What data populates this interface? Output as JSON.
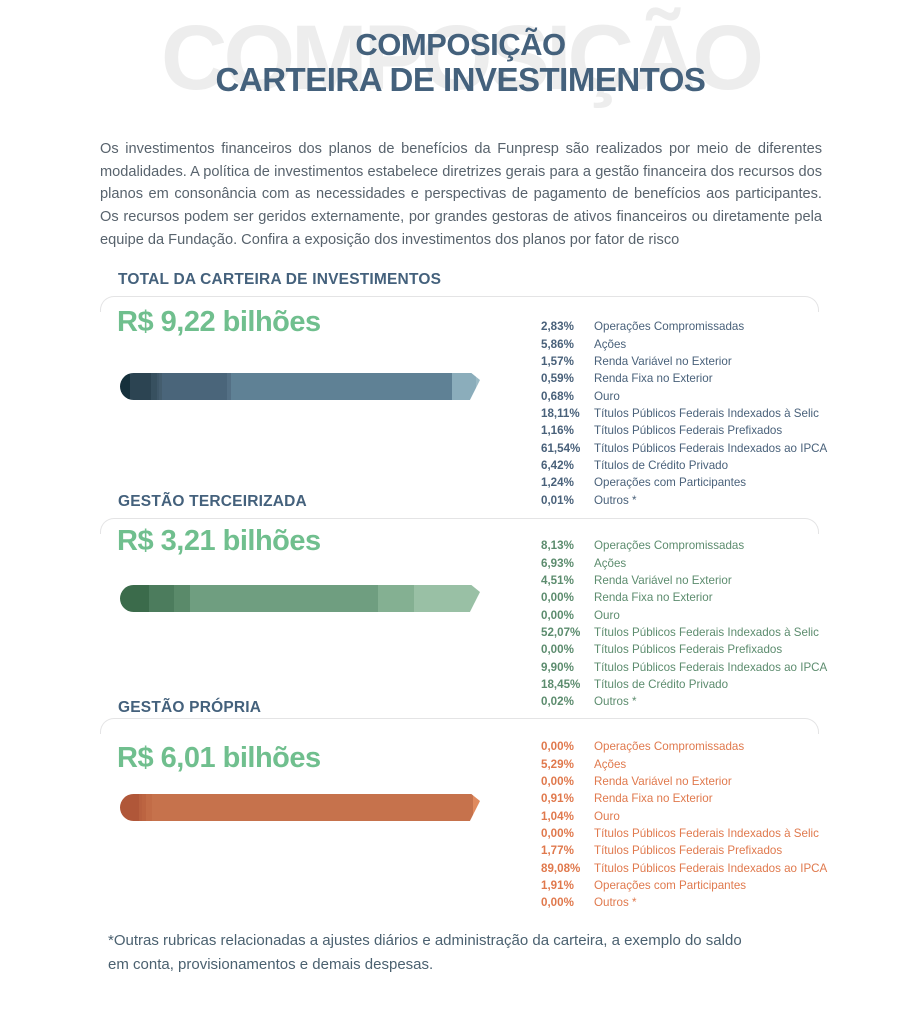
{
  "header": {
    "watermark": "COMPOSIÇÃO",
    "title_line1": "COMPOSIÇÃO",
    "title_line2": "CARTEIRA DE INVESTIMENTOS"
  },
  "intro": "Os investimentos financeiros dos planos de benefícios da Funpresp são realizados por meio de diferentes modalidades. A política de investimentos estabelece diretrizes gerais para a gestão financeira dos recursos dos planos em consonância com as necessidades e perspectivas de pagamento de benefícios aos participantes. Os recursos podem ser geridos externamente, por grandes gestoras de ativos financeiros ou diretamente pela equipe da Fundação. Confira a exposição dos investimentos dos planos por fator de risco",
  "footnote": "*Outras rubricas relacionadas a ajustes diários e administração da carteira, a exemplo do saldo em conta, provisionamentos e demais despesas.",
  "colors": {
    "title_blue": "#44617c",
    "value_green": "#70bf8e",
    "body_text": "#58636d",
    "divider_gray": "#e4e4e5",
    "watermark_gray": "#ededed",
    "legend_total_blue": "#49617a",
    "legend_terceirizada_green": "#5c8c6e",
    "legend_propria_orange": "#e0794d"
  },
  "chart_data": [
    {
      "type": "bar",
      "orientation": "horizontal-stacked",
      "unit": "%",
      "section_label": "TOTAL DA CARTEIRA DE INVESTIMENTOS",
      "total_label": "R$ 9,22 bilhões",
      "legend_color": "#49617a",
      "items": [
        {
          "pct_label": "2,83%",
          "value": 2.83,
          "label": "Operações Compromissadas",
          "color": "#15303b"
        },
        {
          "pct_label": "5,86%",
          "value": 5.86,
          "label": "Ações",
          "color": "#2c4452"
        },
        {
          "pct_label": "1,57%",
          "value": 1.57,
          "label": "Renda Variável no Exterior",
          "color": "#37505f"
        },
        {
          "pct_label": "0,59%",
          "value": 0.59,
          "label": "Renda Fixa no Exterior",
          "color": "#3e5768"
        },
        {
          "pct_label": "0,68%",
          "value": 0.68,
          "label": "Ouro",
          "color": "#445d6e"
        },
        {
          "pct_label": "18,11%",
          "value": 18.11,
          "label": "Títulos Públicos Federais Indexados à Selic",
          "color": "#4a657a"
        },
        {
          "pct_label": "1,16%",
          "value": 1.16,
          "label": "Títulos Públicos Federais Prefixados",
          "color": "#547085"
        },
        {
          "pct_label": "61,54%",
          "value": 61.54,
          "label": "Títulos Públicos Federais Indexados ao IPCA",
          "color": "#5f8195"
        },
        {
          "pct_label": "6,42%",
          "value": 6.42,
          "label": "Títulos de Crédito Privado",
          "color": "#8badbb"
        },
        {
          "pct_label": "1,24%",
          "value": 1.24,
          "label": "Operações com Participantes",
          "color": "#9bbac5"
        },
        {
          "pct_label": "0,01%",
          "value": 0.01,
          "label": "Outros *",
          "color": "#aac7d0"
        }
      ]
    },
    {
      "type": "bar",
      "orientation": "horizontal-stacked",
      "unit": "%",
      "section_label": "GESTÃO TERCEIRIZADA",
      "total_label": "R$ 3,21 bilhões",
      "legend_color": "#5c8c6e",
      "items": [
        {
          "pct_label": "8,13%",
          "value": 8.13,
          "label": "Operações Compromissadas",
          "color": "#3b6b4b"
        },
        {
          "pct_label": "6,93%",
          "value": 6.93,
          "label": "Ações",
          "color": "#4c7c5d"
        },
        {
          "pct_label": "4,51%",
          "value": 4.51,
          "label": "Renda Variável no Exterior",
          "color": "#5a8a6a"
        },
        {
          "pct_label": "0,00%",
          "value": 0,
          "label": "Renda Fixa no Exterior",
          "color": "#629070"
        },
        {
          "pct_label": "0,00%",
          "value": 0,
          "label": "Ouro",
          "color": "#689674"
        },
        {
          "pct_label": "52,07%",
          "value": 52.07,
          "label": "Títulos Públicos Federais Indexados à Selic",
          "color": "#6f9e80"
        },
        {
          "pct_label": "0,00%",
          "value": 0,
          "label": "Títulos Públicos Federais Prefixados",
          "color": "#78a686"
        },
        {
          "pct_label": "9,90%",
          "value": 9.9,
          "label": "Títulos Públicos Federais Indexados ao IPCA",
          "color": "#84b092"
        },
        {
          "pct_label": "18,45%",
          "value": 18.45,
          "label": "Títulos de Crédito Privado",
          "color": "#99c0a5"
        },
        {
          "pct_label": "0,02%",
          "value": 0.02,
          "label": "Outros *",
          "color": "#aacdb4"
        }
      ]
    },
    {
      "type": "bar",
      "orientation": "horizontal-stacked",
      "unit": "%",
      "section_label": "GESTÃO PRÓPRIA",
      "total_label": "R$ 6,01 bilhões",
      "legend_color": "#e0794d",
      "items": [
        {
          "pct_label": "0,00%",
          "value": 0,
          "label": "Operações Compromissadas",
          "color": "#a35033"
        },
        {
          "pct_label": "5,29%",
          "value": 5.29,
          "label": "Ações",
          "color": "#b05739"
        },
        {
          "pct_label": "0,00%",
          "value": 0,
          "label": "Renda Variável no Exterior",
          "color": "#b45c3c"
        },
        {
          "pct_label": "0,91%",
          "value": 0.91,
          "label": "Renda Fixa no Exterior",
          "color": "#b8603f"
        },
        {
          "pct_label": "1,04%",
          "value": 1.04,
          "label": "Ouro",
          "color": "#bc6441"
        },
        {
          "pct_label": "0,00%",
          "value": 0,
          "label": "Títulos Públicos Federais Indexados à Selic",
          "color": "#bf6844"
        },
        {
          "pct_label": "1,77%",
          "value": 1.77,
          "label": "Títulos Públicos Federais Prefixados",
          "color": "#c26c47"
        },
        {
          "pct_label": "89,08%",
          "value": 89.08,
          "label": "Títulos Públicos Federais Indexados ao IPCA",
          "color": "#c6724c"
        },
        {
          "pct_label": "1,91%",
          "value": 1.91,
          "label": "Operações com Participantes",
          "color": "#e08a5e"
        },
        {
          "pct_label": "0,00%",
          "value": 0,
          "label": "Outros *",
          "color": "#eea274"
        }
      ]
    }
  ]
}
